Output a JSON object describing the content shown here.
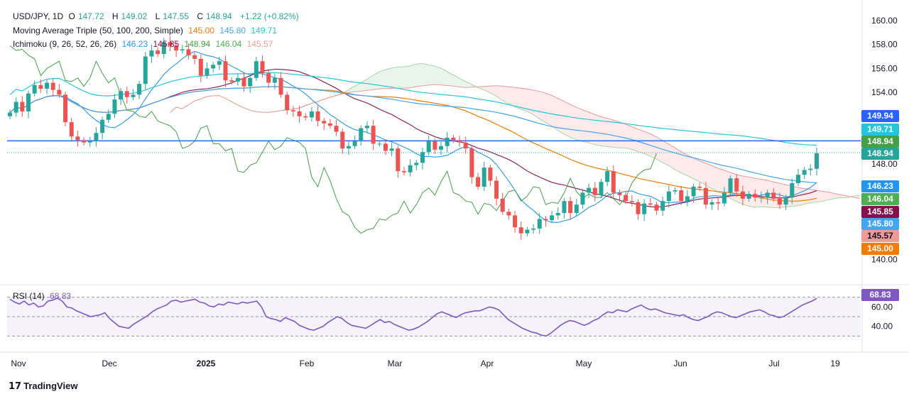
{
  "header": {
    "symbol": "USD/JPY, 1D",
    "o_label": "O",
    "o_val": "147.72",
    "h_label": "H",
    "h_val": "149.02",
    "l_label": "L",
    "l_val": "147.55",
    "c_label": "C",
    "c_val": "148.94",
    "change": "+1.22 (+0.82%)"
  },
  "ma_legend": {
    "label": "Moving Average Triple (50, 100, 200, Simple)",
    "v50": "145.00",
    "v100": "145.80",
    "v200": "149.71"
  },
  "ichimoku_legend": {
    "label": "Ichimoku (9, 26, 52, 26, 26)",
    "conversion": "146.23",
    "base": "145.85",
    "lagging": "148.94",
    "span_a": "146.04",
    "span_b": "145.57"
  },
  "rsi_legend": {
    "label": "RSI (14)",
    "value": "68.83"
  },
  "price_badges": [
    {
      "text": "149.94",
      "color": "#2962ff"
    },
    {
      "text": "149.71",
      "color": "#26c6da"
    },
    {
      "text": "148.94",
      "color": "#43a047"
    },
    {
      "text": "148.94",
      "color": "#26a69a"
    },
    {
      "text": "146.23",
      "color": "#2196f3"
    },
    {
      "text": "146.04",
      "color": "#4caf50"
    },
    {
      "text": "145.85",
      "color": "#880e4f"
    },
    {
      "text": "145.80",
      "color": "#42a5f5"
    },
    {
      "text": "145.57",
      "color": "#ef9a9a"
    },
    {
      "text": "145.00",
      "color": "#f57c00"
    }
  ],
  "rsi_badge": {
    "text": "68.83",
    "color": "#7e57c2"
  },
  "brand": "TradingView",
  "colors": {
    "up": "#26a69a",
    "down": "#ef5350",
    "ma50": "#f57c00",
    "ma100": "#42a5f5",
    "ma200": "#26c6da",
    "conversion": "#2196f3",
    "base": "#880e4f",
    "lagging": "#43a047",
    "span_a": "#a5d6a7",
    "span_b": "#ef9a9a",
    "rsi": "#7e57c2",
    "hline": "#2962ff"
  },
  "chart_data": [
    {
      "type": "candlestick",
      "title": "USD/JPY, 1D",
      "x_ticks": [
        "Nov",
        "Dec",
        "2025",
        "Feb",
        "Mar",
        "Apr",
        "May",
        "Jun",
        "Jul",
        "19"
      ],
      "y_ticks": [
        140.0,
        142.0,
        144.0,
        146.0,
        148.0,
        150.0,
        152.0,
        154.0,
        156.0,
        158.0,
        160.0
      ],
      "y_tick_labels": [
        "140.00",
        "148.00",
        "154.00",
        "156.00",
        "158.00",
        "160.00"
      ],
      "ylim": [
        138.0,
        162.0
      ],
      "horizontal_line": 149.94,
      "close": [
        152.3,
        153.2,
        152.4,
        153.9,
        154.6,
        154.3,
        154.8,
        154.2,
        153.8,
        151.5,
        150.3,
        150.0,
        149.8,
        149.9,
        150.6,
        151.7,
        152.2,
        153.4,
        154.1,
        153.6,
        153.8,
        154.7,
        157.0,
        157.5,
        157.2,
        158.2,
        157.9,
        157.5,
        157.6,
        157.1,
        156.8,
        155.4,
        156.0,
        156.3,
        156.6,
        155.0,
        154.9,
        155.2,
        154.5,
        155.2,
        156.6,
        155.6,
        154.8,
        155.2,
        153.8,
        152.5,
        152.4,
        152.0,
        151.9,
        152.4,
        151.6,
        151.4,
        151.2,
        150.7,
        149.3,
        149.5,
        149.9,
        151.0,
        151.2,
        149.7,
        149.7,
        149.1,
        149.3,
        147.4,
        147.3,
        147.9,
        148.1,
        149.0,
        149.9,
        149.2,
        149.5,
        150.2,
        150.0,
        149.8,
        149.3,
        146.9,
        146.1,
        147.7,
        146.6,
        145.1,
        144.0,
        143.7,
        142.7,
        142.2,
        142.5,
        142.6,
        143.4,
        143.3,
        143.7,
        143.9,
        144.9,
        143.9,
        144.6,
        145.6,
        146.0,
        145.4,
        146.5,
        147.4,
        145.6,
        145.4,
        144.9,
        144.8,
        143.8,
        144.7,
        144.6,
        144.1,
        144.9,
        145.7,
        145.8,
        144.9,
        145.3,
        146.1,
        146.0,
        144.6,
        144.8,
        144.7,
        145.6,
        146.8,
        145.7,
        145.1,
        145.5,
        145.2,
        145.2,
        145.6,
        145.1,
        144.6,
        145.2,
        146.4,
        147.1,
        147.5,
        147.6,
        148.9
      ],
      "series": [
        {
          "name": "SMA 50",
          "last": 145.0
        },
        {
          "name": "SMA 100",
          "last": 145.8
        },
        {
          "name": "SMA 200",
          "last": 149.71
        },
        {
          "name": "Conversion",
          "last": 146.23
        },
        {
          "name": "Base",
          "last": 145.85
        },
        {
          "name": "Lagging",
          "last": 148.94
        },
        {
          "name": "Lead A",
          "last": 146.04
        },
        {
          "name": "Lead B",
          "last": 145.57
        }
      ]
    },
    {
      "type": "line",
      "title": "RSI (14)",
      "ylim": [
        20,
        80
      ],
      "y_tick_labels": [
        "40.00",
        "60.00"
      ],
      "levels": [
        70,
        50,
        30
      ],
      "values": [
        68,
        65,
        63,
        66,
        62,
        64,
        60,
        61,
        66,
        67,
        69,
        66,
        60,
        59,
        56,
        54,
        52,
        50,
        51,
        52,
        54,
        48,
        44,
        40,
        39,
        38,
        42,
        45,
        48,
        51,
        55,
        58,
        60,
        62,
        66,
        67,
        65,
        66,
        67,
        68,
        65,
        64,
        61,
        60,
        63,
        62,
        65,
        64,
        63,
        65,
        64,
        65,
        66,
        60,
        50,
        48,
        47,
        45,
        49,
        47,
        45,
        41,
        39,
        37,
        36,
        38,
        40,
        44,
        47,
        50,
        48,
        44,
        41,
        40,
        39,
        38,
        41,
        44,
        47,
        44,
        45,
        42,
        40,
        38,
        36,
        37,
        39,
        42,
        45,
        49,
        53,
        55,
        53,
        51,
        49,
        52,
        54,
        55,
        56,
        56,
        58,
        60,
        59,
        57,
        52,
        47,
        44,
        41,
        38,
        36,
        34,
        33,
        31,
        30,
        33,
        37,
        41,
        44,
        46,
        45,
        43,
        41,
        43,
        46,
        48,
        52,
        55,
        54,
        57,
        56,
        55,
        58,
        60,
        62,
        59,
        57,
        58,
        56,
        54,
        53,
        52,
        51,
        52,
        49,
        47,
        46,
        48,
        50,
        53,
        55,
        54,
        52,
        50,
        49,
        51,
        53,
        55,
        56,
        57,
        55,
        52,
        51,
        49,
        50,
        53,
        56,
        59,
        62,
        64,
        66,
        68.83
      ]
    }
  ]
}
